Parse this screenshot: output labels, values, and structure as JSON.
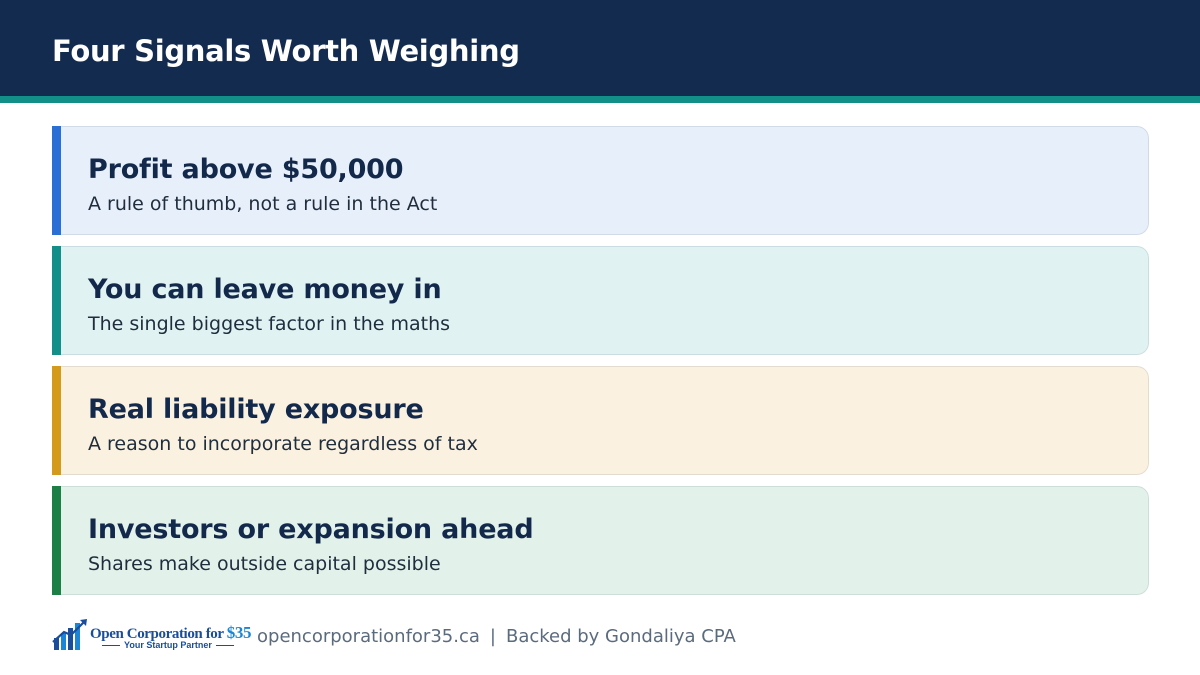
{
  "header": {
    "title": "Four Signals Worth Weighing"
  },
  "cards": [
    {
      "title": "Profit above $50,000",
      "subtitle": "A rule of thumb, not a rule in the Act",
      "accent": "#2a6fd6",
      "background": "#e7effa"
    },
    {
      "title": "You can leave money in",
      "subtitle": "The single biggest factor in the maths",
      "accent": "#138f8a",
      "background": "#e0f2f2"
    },
    {
      "title": "Real liability exposure",
      "subtitle": "A reason to incorporate regardless of tax",
      "accent": "#d49a1c",
      "background": "#faf1e0"
    },
    {
      "title": "Investors or expansion ahead",
      "subtitle": "Shares make outside capital possible",
      "accent": "#1c7f45",
      "background": "#e2f2ea"
    }
  ],
  "footer": {
    "logo_name": "Open Corporation for",
    "logo_price": "$35",
    "logo_tagline": "Your Startup Partner",
    "website": "opencorporationfor35.ca",
    "separator": "|",
    "backed_by": "Backed by Gondaliya CPA"
  },
  "colors": {
    "header_bg": "#132b4f",
    "teal_rule": "#138f8a",
    "title_text": "#13294b",
    "footer_text": "#5b6b7e"
  }
}
